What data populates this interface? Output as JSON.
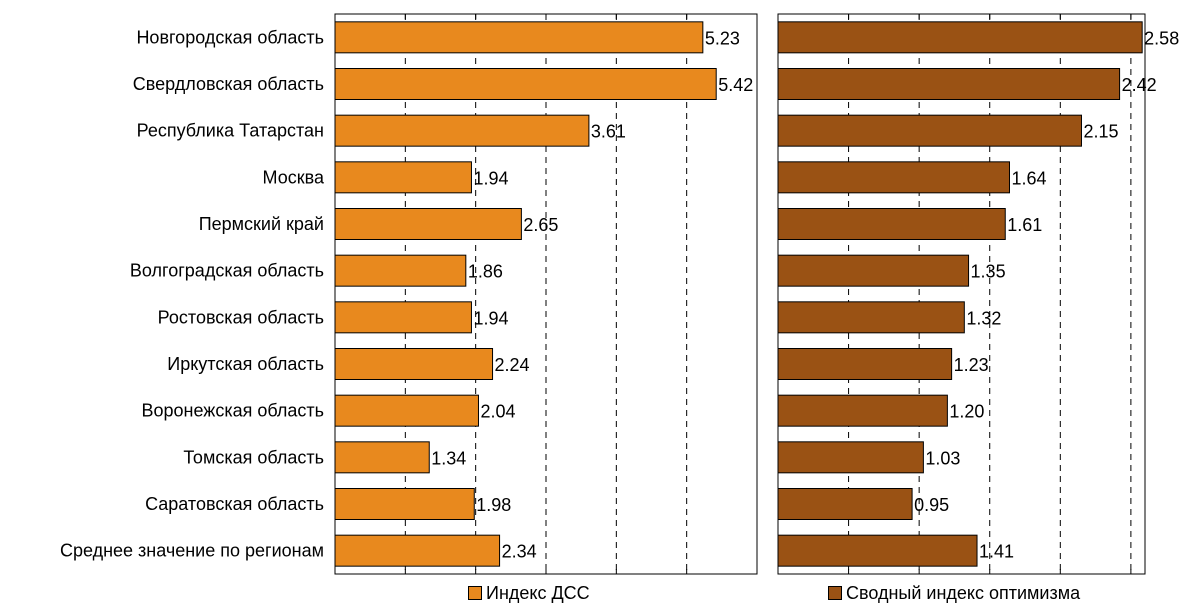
{
  "chart_data": {
    "type": "bar",
    "orientation": "horizontal",
    "categories": [
      "Новгородская область",
      "Свердловская область",
      "Республика Татарстан",
      "Москва",
      "Пермский край",
      "Волгоградская область",
      "Ростовская область",
      "Иркутская область",
      "Воронежская область",
      "Томская область",
      "Саратовская область",
      "Среднее значение по регионам"
    ],
    "panels": [
      {
        "series_name": "Индекс ДСС",
        "color": "#E8891E",
        "values": [
          5.23,
          5.42,
          3.61,
          1.94,
          2.65,
          1.86,
          1.94,
          2.24,
          2.04,
          1.34,
          1.98,
          2.34
        ],
        "value_labels": [
          "5.23",
          "5.42",
          "3.61",
          "1.94",
          "2.65",
          "1.86",
          "1.94",
          "2.24",
          "2.04",
          "1.34",
          "1.98",
          "2.34"
        ],
        "xlim": [
          0,
          6
        ],
        "grid_step": 1
      },
      {
        "series_name": "Сводный индекс оптимизма",
        "color": "#9A5214",
        "values": [
          2.58,
          2.42,
          2.15,
          1.64,
          1.61,
          1.35,
          1.32,
          1.23,
          1.2,
          1.03,
          0.95,
          1.41
        ],
        "value_labels": [
          "2.58",
          "2.42",
          "2.15",
          "1.64",
          "1.61",
          "1.35",
          "1.32",
          "1.23",
          "1.20",
          "1.03",
          "0.95",
          "1.41"
        ],
        "xlim": [
          0,
          2.6
        ],
        "grid_step": 0.5
      }
    ],
    "grid": "vertical-dashed",
    "legend": "bottom"
  }
}
